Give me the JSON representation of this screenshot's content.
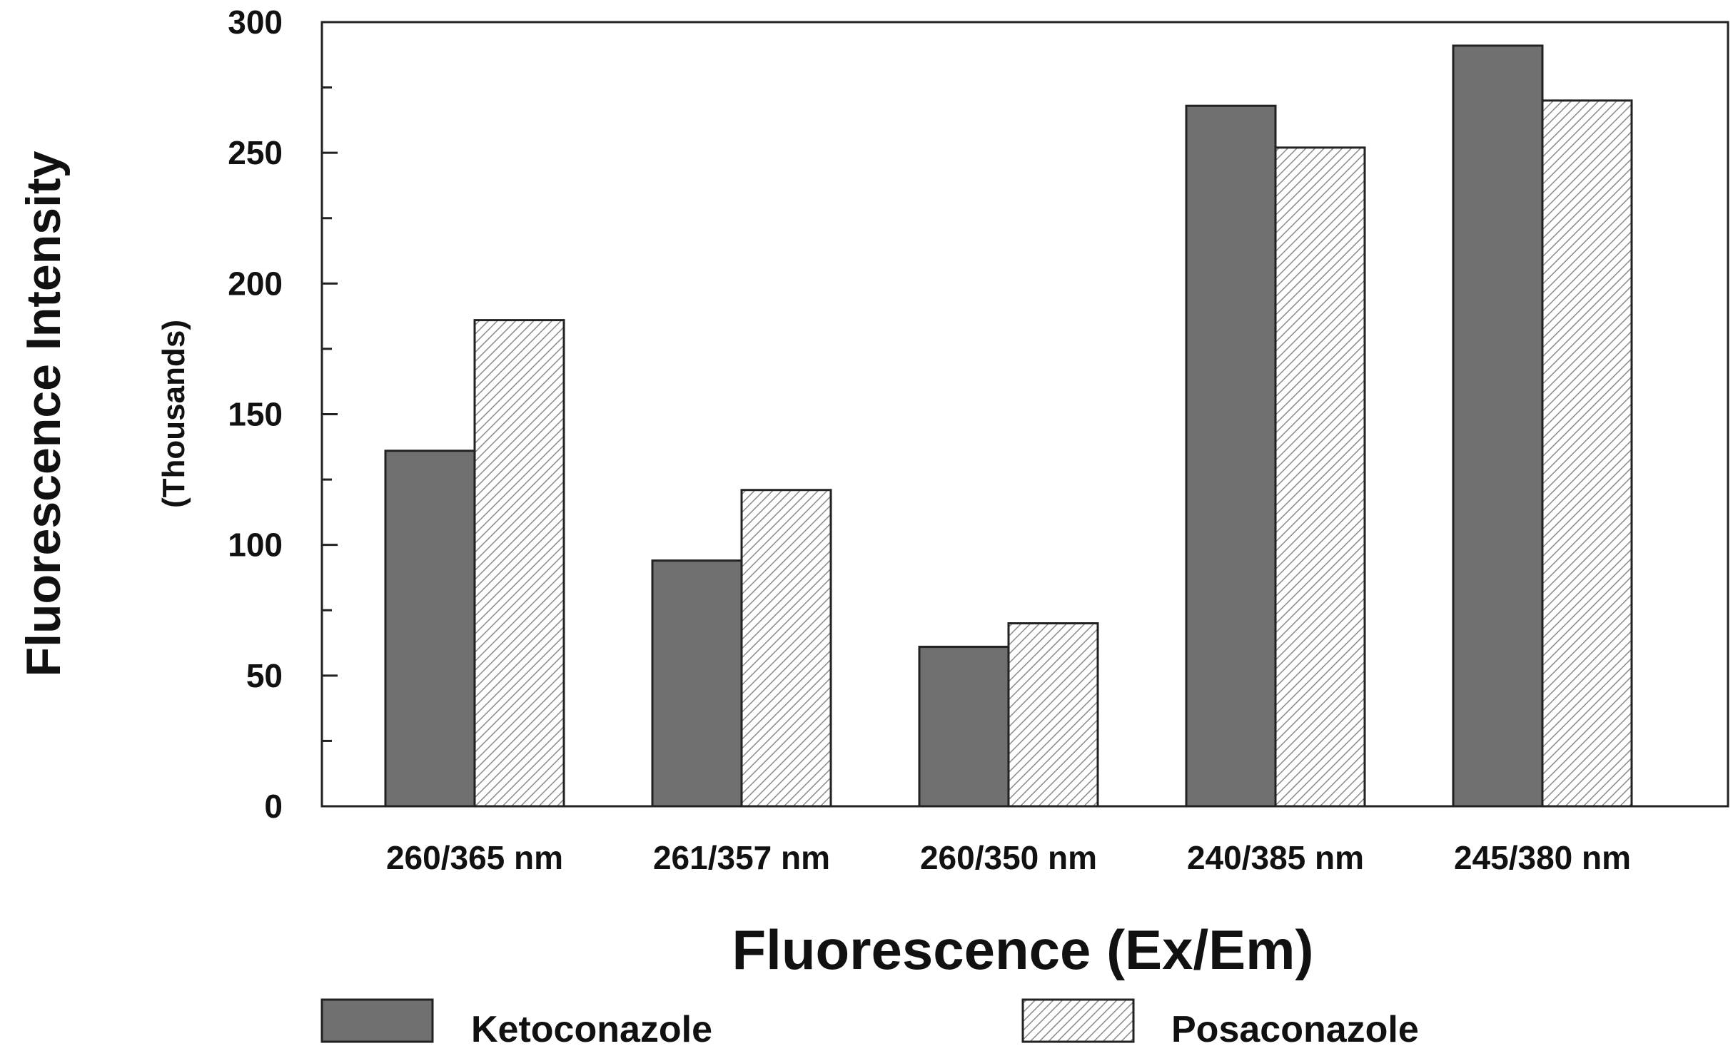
{
  "chart_data": {
    "type": "bar",
    "title": "",
    "xlabel": "Fluorescence (Ex/Em)",
    "ylabel": "Fluorescence Intensity",
    "ylabel_units": "(Thousands)",
    "ylim": [
      0,
      300
    ],
    "yticks": [
      0,
      50,
      100,
      150,
      200,
      250,
      300
    ],
    "categories": [
      "260/365 nm",
      "261/357 nm",
      "260/350 nm",
      "240/385 nm",
      "245/380 nm"
    ],
    "series": [
      {
        "name": "Ketoconazole",
        "values": [
          136,
          94,
          61,
          268,
          291
        ],
        "fill": "#707070",
        "pattern": "solid"
      },
      {
        "name": "Posaconazole",
        "values": [
          186,
          121,
          70,
          252,
          270
        ],
        "fill": "#ffffff",
        "pattern": "diagonal-hatch"
      }
    ],
    "legend_position": "bottom",
    "grid": false
  }
}
